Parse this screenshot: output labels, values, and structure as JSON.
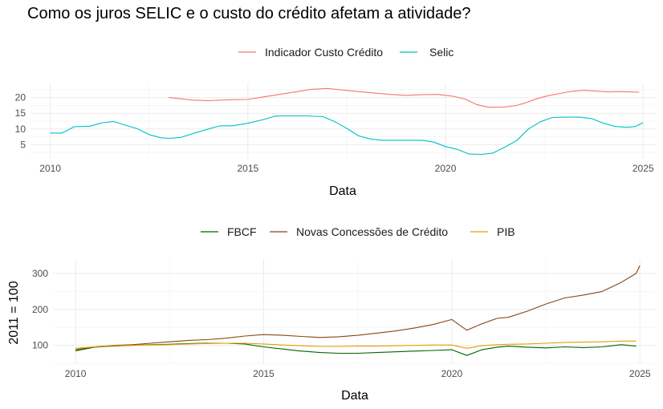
{
  "title": "Como os juros SELIC e o custo do crédito afetam a atividade?",
  "chart_data": [
    {
      "type": "line",
      "xlabel": "Data",
      "ylabel": "",
      "xlim": [
        2009.5,
        2025.3
      ],
      "ylim": [
        0.5,
        24.5
      ],
      "xticks": [
        2010,
        2015,
        2020,
        2025
      ],
      "yticks": [
        5,
        10,
        15,
        20
      ],
      "grid": true,
      "legend_position": "top",
      "series": [
        {
          "name": "Indicador Custo Crédito",
          "color": "#F8766D",
          "points": [
            [
              2013.0,
              20.0
            ],
            [
              2013.3,
              19.6
            ],
            [
              2013.6,
              19.2
            ],
            [
              2014.0,
              19.0
            ],
            [
              2014.5,
              19.3
            ],
            [
              2015.0,
              19.4
            ],
            [
              2015.4,
              20.2
            ],
            [
              2015.8,
              21.0
            ],
            [
              2016.2,
              21.8
            ],
            [
              2016.6,
              22.6
            ],
            [
              2017.0,
              22.9
            ],
            [
              2017.4,
              22.4
            ],
            [
              2017.8,
              21.9
            ],
            [
              2018.2,
              21.4
            ],
            [
              2018.6,
              21.0
            ],
            [
              2019.0,
              20.7
            ],
            [
              2019.4,
              20.9
            ],
            [
              2019.8,
              21.0
            ],
            [
              2020.2,
              20.4
            ],
            [
              2020.5,
              19.5
            ],
            [
              2020.8,
              17.7
            ],
            [
              2021.1,
              16.9
            ],
            [
              2021.5,
              17.0
            ],
            [
              2021.8,
              17.5
            ],
            [
              2022.0,
              18.2
            ],
            [
              2022.3,
              19.6
            ],
            [
              2022.6,
              20.6
            ],
            [
              2022.9,
              21.3
            ],
            [
              2023.2,
              22.0
            ],
            [
              2023.5,
              22.3
            ],
            [
              2023.8,
              22.1
            ],
            [
              2024.1,
              21.8
            ],
            [
              2024.4,
              21.9
            ],
            [
              2024.7,
              21.8
            ],
            [
              2024.9,
              21.7
            ]
          ]
        },
        {
          "name": "Selic",
          "color": "#00BFC4",
          "points": [
            [
              2010.0,
              8.7
            ],
            [
              2010.3,
              8.7
            ],
            [
              2010.6,
              10.7
            ],
            [
              2011.0,
              10.9
            ],
            [
              2011.3,
              11.9
            ],
            [
              2011.6,
              12.4
            ],
            [
              2011.9,
              11.2
            ],
            [
              2012.2,
              10.1
            ],
            [
              2012.5,
              8.2
            ],
            [
              2012.8,
              7.2
            ],
            [
              2013.0,
              7.0
            ],
            [
              2013.3,
              7.3
            ],
            [
              2013.6,
              8.5
            ],
            [
              2014.0,
              10.0
            ],
            [
              2014.3,
              11.0
            ],
            [
              2014.6,
              11.0
            ],
            [
              2015.0,
              11.8
            ],
            [
              2015.4,
              13.0
            ],
            [
              2015.7,
              14.1
            ],
            [
              2016.0,
              14.15
            ],
            [
              2016.5,
              14.15
            ],
            [
              2016.9,
              13.9
            ],
            [
              2017.2,
              12.3
            ],
            [
              2017.5,
              10.2
            ],
            [
              2017.8,
              7.8
            ],
            [
              2018.1,
              6.8
            ],
            [
              2018.4,
              6.4
            ],
            [
              2018.7,
              6.4
            ],
            [
              2019.0,
              6.4
            ],
            [
              2019.4,
              6.4
            ],
            [
              2019.7,
              5.8
            ],
            [
              2020.0,
              4.4
            ],
            [
              2020.3,
              3.5
            ],
            [
              2020.6,
              2.0
            ],
            [
              2020.9,
              1.9
            ],
            [
              2021.2,
              2.3
            ],
            [
              2021.5,
              4.2
            ],
            [
              2021.8,
              6.3
            ],
            [
              2022.1,
              10.0
            ],
            [
              2022.4,
              12.3
            ],
            [
              2022.7,
              13.65
            ],
            [
              2023.0,
              13.75
            ],
            [
              2023.4,
              13.75
            ],
            [
              2023.7,
              13.3
            ],
            [
              2024.0,
              11.8
            ],
            [
              2024.3,
              10.8
            ],
            [
              2024.6,
              10.5
            ],
            [
              2024.8,
              10.8
            ],
            [
              2025.0,
              12.0
            ]
          ]
        }
      ]
    },
    {
      "type": "line",
      "xlabel": "Data",
      "ylabel": "2011 = 100",
      "xlim": [
        2009.4,
        2025.4
      ],
      "ylim": [
        48,
        340
      ],
      "xticks": [
        2010,
        2015,
        2020,
        2025
      ],
      "yticks": [
        100,
        200,
        300
      ],
      "grid": true,
      "legend_position": "top",
      "series": [
        {
          "name": "FBCF",
          "color": "#006400",
          "points": [
            [
              2010.0,
              85
            ],
            [
              2010.5,
              95
            ],
            [
              2011.0,
              98
            ],
            [
              2011.5,
              100
            ],
            [
              2012.0,
              102
            ],
            [
              2012.5,
              103
            ],
            [
              2013.0,
              105
            ],
            [
              2013.5,
              106
            ],
            [
              2014.0,
              106
            ],
            [
              2014.5,
              104
            ],
            [
              2015.0,
              96
            ],
            [
              2015.5,
              90
            ],
            [
              2016.0,
              84
            ],
            [
              2016.5,
              80
            ],
            [
              2017.0,
              78
            ],
            [
              2017.5,
              78
            ],
            [
              2018.0,
              80
            ],
            [
              2018.5,
              82
            ],
            [
              2019.0,
              84
            ],
            [
              2019.5,
              86
            ],
            [
              2020.0,
              88
            ],
            [
              2020.4,
              72
            ],
            [
              2020.8,
              88
            ],
            [
              2021.2,
              95
            ],
            [
              2021.5,
              98
            ],
            [
              2022.0,
              95
            ],
            [
              2022.5,
              93
            ],
            [
              2023.0,
              96
            ],
            [
              2023.5,
              94
            ],
            [
              2024.0,
              96
            ],
            [
              2024.5,
              102
            ],
            [
              2024.9,
              98
            ]
          ]
        },
        {
          "name": "Novas Concessões de Crédito",
          "color": "#8B4513",
          "points": [
            [
              2010.0,
              88
            ],
            [
              2010.5,
              96
            ],
            [
              2011.0,
              100
            ],
            [
              2011.5,
              102
            ],
            [
              2012.0,
              106
            ],
            [
              2012.5,
              110
            ],
            [
              2013.0,
              114
            ],
            [
              2013.5,
              116
            ],
            [
              2014.0,
              120
            ],
            [
              2014.5,
              126
            ],
            [
              2015.0,
              130
            ],
            [
              2015.5,
              128
            ],
            [
              2016.0,
              125
            ],
            [
              2016.5,
              122
            ],
            [
              2017.0,
              124
            ],
            [
              2017.5,
              128
            ],
            [
              2018.0,
              134
            ],
            [
              2018.5,
              140
            ],
            [
              2019.0,
              148
            ],
            [
              2019.5,
              158
            ],
            [
              2020.0,
              172
            ],
            [
              2020.4,
              142
            ],
            [
              2020.8,
              160
            ],
            [
              2021.2,
              175
            ],
            [
              2021.5,
              178
            ],
            [
              2022.0,
              195
            ],
            [
              2022.5,
              215
            ],
            [
              2023.0,
              232
            ],
            [
              2023.5,
              240
            ],
            [
              2024.0,
              250
            ],
            [
              2024.5,
              275
            ],
            [
              2024.9,
              300
            ],
            [
              2025.0,
              322
            ]
          ]
        },
        {
          "name": "PIB",
          "color": "#E69F00",
          "points": [
            [
              2010.0,
              92
            ],
            [
              2010.5,
              96
            ],
            [
              2011.0,
              99
            ],
            [
              2011.5,
              100
            ],
            [
              2012.0,
              101
            ],
            [
              2012.5,
              102
            ],
            [
              2013.0,
              104
            ],
            [
              2013.5,
              105
            ],
            [
              2014.0,
              106
            ],
            [
              2014.5,
              106
            ],
            [
              2015.0,
              104
            ],
            [
              2015.5,
              101
            ],
            [
              2016.0,
              99
            ],
            [
              2016.5,
              97
            ],
            [
              2017.0,
              97
            ],
            [
              2017.5,
              98
            ],
            [
              2018.0,
              98
            ],
            [
              2018.5,
              99
            ],
            [
              2019.0,
              100
            ],
            [
              2019.5,
              101
            ],
            [
              2020.0,
              101
            ],
            [
              2020.4,
              92
            ],
            [
              2020.8,
              99
            ],
            [
              2021.2,
              102
            ],
            [
              2021.5,
              103
            ],
            [
              2022.0,
              104
            ],
            [
              2022.5,
              106
            ],
            [
              2023.0,
              108
            ],
            [
              2023.5,
              109
            ],
            [
              2024.0,
              110
            ],
            [
              2024.5,
              112
            ],
            [
              2024.9,
              112
            ]
          ]
        }
      ]
    }
  ]
}
